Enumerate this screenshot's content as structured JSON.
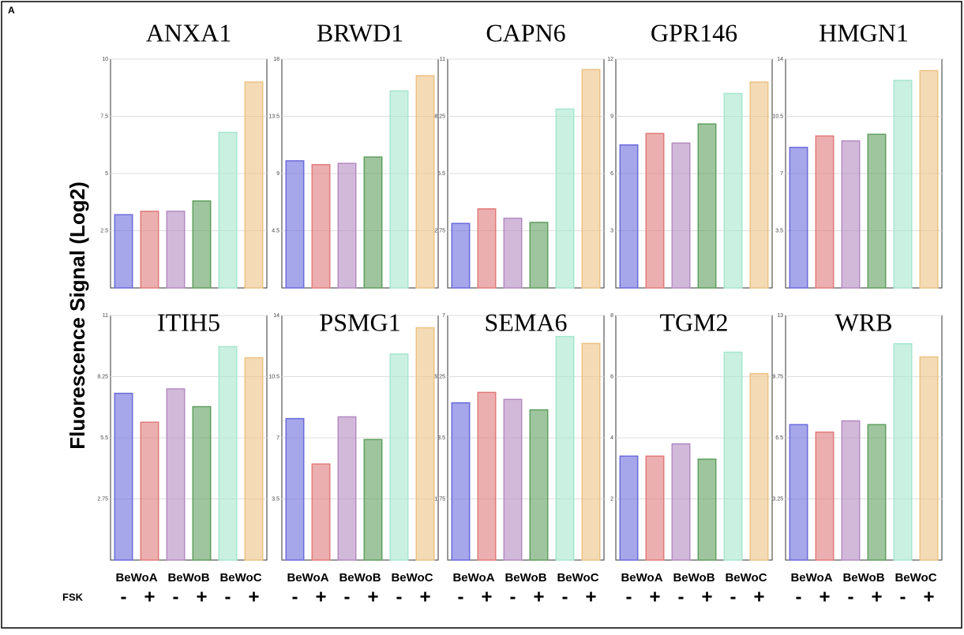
{
  "figure_label": "A",
  "y_label": "Fluorescence Signal (Log2)",
  "fsk_label": "FSK",
  "chart_data": [
    {
      "type": "bar",
      "title": "ANXA1",
      "categories": [
        null,
        null,
        null,
        null,
        null,
        null
      ],
      "values": [
        3.2,
        3.35,
        3.35,
        3.8,
        6.8,
        9.0
      ],
      "colors": [
        "#6b6bdc",
        "#e07a7a",
        "#b48ac2",
        "#5f9f5f",
        "#a6e6cf",
        "#ecc283"
      ],
      "ylim": [
        0,
        10
      ],
      "yticks": [
        2.5,
        5,
        7.5,
        10
      ],
      "grid": true
    },
    {
      "type": "bar",
      "title": "BRWD1",
      "categories": [
        null,
        null,
        null,
        null,
        null,
        null
      ],
      "values": [
        10,
        9.7,
        9.8,
        10.3,
        15.5,
        16.7
      ],
      "colors": [
        "#6b6bdc",
        "#e07a7a",
        "#b48ac2",
        "#5f9f5f",
        "#a6e6cf",
        "#ecc283"
      ],
      "ylim": [
        0,
        18
      ],
      "yticks": [
        4.5,
        9,
        13.5,
        18
      ],
      "grid": true
    },
    {
      "type": "bar",
      "title": "CAPN6",
      "categories": [
        null,
        null,
        null,
        null,
        null,
        null
      ],
      "values": [
        3.1,
        3.8,
        3.35,
        3.15,
        8.6,
        10.5
      ],
      "colors": [
        "#6b6bdc",
        "#e07a7a",
        "#b48ac2",
        "#5f9f5f",
        "#a6e6cf",
        "#ecc283"
      ],
      "ylim": [
        0,
        11
      ],
      "yticks": [
        2.75,
        5.5,
        8.25,
        11
      ],
      "grid": true
    },
    {
      "type": "bar",
      "title": "GPR146",
      "categories": [
        null,
        null,
        null,
        null,
        null,
        null
      ],
      "values": [
        7.5,
        8.1,
        7.6,
        8.6,
        10.2,
        10.8
      ],
      "colors": [
        "#6b6bdc",
        "#e07a7a",
        "#b48ac2",
        "#5f9f5f",
        "#a6e6cf",
        "#ecc283"
      ],
      "ylim": [
        0,
        12
      ],
      "yticks": [
        3,
        6,
        9,
        12
      ],
      "grid": true
    },
    {
      "type": "bar",
      "title": "HMGN1",
      "categories": [
        null,
        null,
        null,
        null,
        null,
        null
      ],
      "values": [
        8.6,
        9.3,
        9.0,
        9.4,
        12.7,
        13.3
      ],
      "colors": [
        "#6b6bdc",
        "#e07a7a",
        "#b48ac2",
        "#5f9f5f",
        "#a6e6cf",
        "#ecc283"
      ],
      "ylim": [
        0,
        14
      ],
      "yticks": [
        3.5,
        7,
        10.5,
        14
      ],
      "grid": true
    },
    {
      "type": "bar",
      "title": "ITIH5",
      "categories": [
        "-",
        "+",
        "-",
        "+",
        "-",
        "+"
      ],
      "groups": [
        "BeWoA",
        "BeWoB",
        "BeWoC"
      ],
      "values": [
        7.5,
        6.2,
        7.7,
        6.9,
        9.6,
        9.1
      ],
      "colors": [
        "#6b6bdc",
        "#e07a7a",
        "#b48ac2",
        "#5f9f5f",
        "#a6e6cf",
        "#ecc283"
      ],
      "ylim": [
        0,
        11
      ],
      "yticks": [
        2.75,
        5.5,
        8.25,
        11
      ],
      "grid": true
    },
    {
      "type": "bar",
      "title": "PSMG1",
      "categories": [
        "-",
        "+",
        "-",
        "+",
        "-",
        "+"
      ],
      "groups": [
        "BeWoA",
        "BeWoB",
        "BeWoC"
      ],
      "values": [
        8.1,
        5.5,
        8.2,
        6.9,
        11.8,
        13.3
      ],
      "colors": [
        "#6b6bdc",
        "#e07a7a",
        "#b48ac2",
        "#5f9f5f",
        "#a6e6cf",
        "#ecc283"
      ],
      "ylim": [
        0,
        14
      ],
      "yticks": [
        3.5,
        7,
        10.5,
        14
      ],
      "grid": true
    },
    {
      "type": "bar",
      "title": "SEMA6",
      "categories": [
        "-",
        "+",
        "-",
        "+",
        "-",
        "+"
      ],
      "groups": [
        "BeWoA",
        "BeWoB",
        "BeWoC"
      ],
      "values": [
        4.5,
        4.8,
        4.6,
        4.3,
        6.4,
        6.2
      ],
      "colors": [
        "#6b6bdc",
        "#e07a7a",
        "#b48ac2",
        "#5f9f5f",
        "#a6e6cf",
        "#ecc283"
      ],
      "ylim": [
        0,
        7
      ],
      "yticks": [
        1.75,
        3.5,
        5.25,
        7
      ],
      "grid": true
    },
    {
      "type": "bar",
      "title": "TGM2",
      "categories": [
        "-",
        "+",
        "-",
        "+",
        "-",
        "+"
      ],
      "groups": [
        "BeWoA",
        "BeWoB",
        "BeWoC"
      ],
      "values": [
        3.4,
        3.4,
        3.8,
        3.3,
        6.8,
        6.1
      ],
      "colors": [
        "#6b6bdc",
        "#e07a7a",
        "#b48ac2",
        "#5f9f5f",
        "#a6e6cf",
        "#ecc283"
      ],
      "ylim": [
        0,
        8
      ],
      "yticks": [
        2,
        4,
        6,
        8
      ],
      "grid": true
    },
    {
      "type": "bar",
      "title": "WRB",
      "categories": [
        "-",
        "+",
        "-",
        "+",
        "-",
        "+"
      ],
      "groups": [
        "BeWoA",
        "BeWoB",
        "BeWoC"
      ],
      "values": [
        7.2,
        6.8,
        7.4,
        7.2,
        11.5,
        10.8
      ],
      "colors": [
        "#6b6bdc",
        "#e07a7a",
        "#b48ac2",
        "#5f9f5f",
        "#a6e6cf",
        "#ecc283"
      ],
      "ylim": [
        0,
        13
      ],
      "yticks": [
        3.25,
        6.5,
        9.75,
        13
      ],
      "grid": true
    }
  ]
}
